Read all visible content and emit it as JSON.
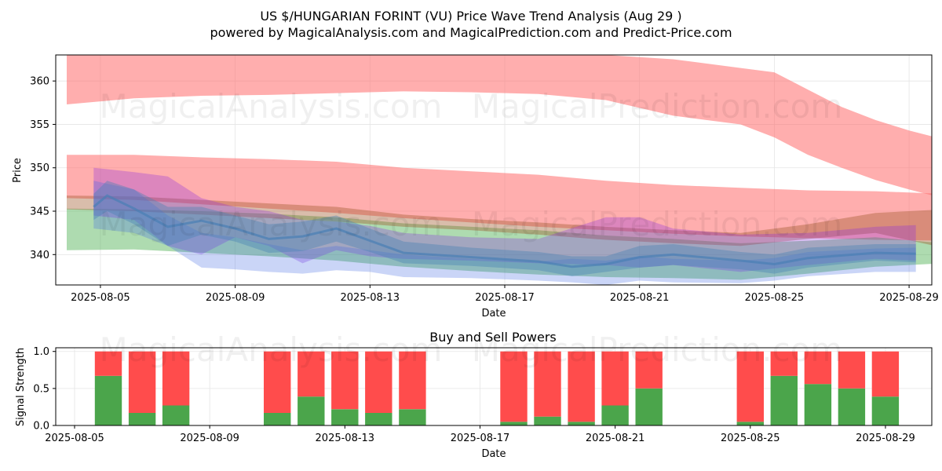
{
  "title": "US $/HUNGARIAN FORINT (VU) Price Wave Trend Analysis (Aug 29 )",
  "subtitle": "powered by MagicalAnalysis.com and MagicalPrediction.com and Predict-Price.com",
  "watermarks": [
    "MagicalAnalysis.com",
    "MagicalPrediction.com"
  ],
  "chart_data": [
    {
      "type": "area",
      "title": "",
      "xlabel": "Date",
      "ylabel": "Price",
      "x_start": "2025-08-04",
      "x_tick_labels": [
        "2025-08-05",
        "2025-08-09",
        "2025-08-13",
        "2025-08-17",
        "2025-08-21",
        "2025-08-25",
        "2025-08-29"
      ],
      "xlim": [
        "2025-08-04",
        "2025-08-30"
      ],
      "ylim": [
        336.5,
        363
      ],
      "y_ticks": [
        340,
        345,
        350,
        355,
        360
      ],
      "grid": true,
      "bands": [
        {
          "color": "#ff6b6b",
          "opacity": 0.55,
          "x": [
            "2025-08-04",
            "2025-08-06",
            "2025-08-08",
            "2025-08-10",
            "2025-08-12",
            "2025-08-14",
            "2025-08-16",
            "2025-08-18",
            "2025-08-20",
            "2025-08-22",
            "2025-08-24",
            "2025-08-25",
            "2025-08-26",
            "2025-08-27",
            "2025-08-28",
            "2025-08-29",
            "2025-08-30"
          ],
          "upper": [
            363,
            363,
            363,
            363,
            363,
            363,
            363,
            363,
            363,
            362.5,
            361.5,
            361,
            359,
            357,
            355.5,
            354.3,
            353.3
          ],
          "lower": [
            357.3,
            358,
            358.3,
            358.4,
            358.6,
            358.8,
            358.7,
            358.5,
            357.8,
            356,
            355,
            353.5,
            351.5,
            350,
            348.6,
            347.5,
            346.5
          ]
        },
        {
          "color": "#ff6b6b",
          "opacity": 0.55,
          "x": [
            "2025-08-04",
            "2025-08-06",
            "2025-08-08",
            "2025-08-10",
            "2025-08-12",
            "2025-08-14",
            "2025-08-16",
            "2025-08-18",
            "2025-08-20",
            "2025-08-22",
            "2025-08-24",
            "2025-08-26",
            "2025-08-28",
            "2025-08-30"
          ],
          "upper": [
            351.5,
            351.5,
            351.2,
            351,
            350.7,
            350,
            349.6,
            349.2,
            348.5,
            348,
            347.7,
            347.4,
            347.3,
            347
          ],
          "lower": [
            346.5,
            346.3,
            345.8,
            345.3,
            344.8,
            344.2,
            343.7,
            343.2,
            342.8,
            342.4,
            342.1,
            341.9,
            341.7,
            341.6
          ]
        },
        {
          "color": "#4caf50",
          "opacity": 0.45,
          "x": [
            "2025-08-04",
            "2025-08-06",
            "2025-08-08",
            "2025-08-10",
            "2025-08-12",
            "2025-08-14",
            "2025-08-16",
            "2025-08-18",
            "2025-08-20",
            "2025-08-22",
            "2025-08-24",
            "2025-08-26",
            "2025-08-28",
            "2025-08-30"
          ],
          "upper": [
            345.3,
            345.2,
            345,
            344.7,
            344.3,
            343.6,
            343.2,
            342.8,
            342.2,
            341.8,
            341.3,
            341.6,
            342,
            341.3
          ],
          "lower": [
            340.5,
            340.6,
            340.2,
            339.8,
            339.3,
            338.6,
            338.1,
            337.7,
            337.4,
            337.3,
            337.1,
            337.8,
            338.6,
            339
          ]
        },
        {
          "color": "#a05a2c",
          "opacity": 0.4,
          "x": [
            "2025-08-04",
            "2025-08-06",
            "2025-08-08",
            "2025-08-10",
            "2025-08-12",
            "2025-08-14",
            "2025-08-16",
            "2025-08-18",
            "2025-08-20",
            "2025-08-22",
            "2025-08-24",
            "2025-08-26",
            "2025-08-28",
            "2025-08-30"
          ],
          "upper": [
            346.8,
            346.7,
            346.3,
            345.9,
            345.5,
            344.6,
            344.1,
            343.7,
            343.2,
            342.8,
            342.5,
            343.5,
            344.8,
            345.2
          ],
          "lower": [
            345.2,
            345,
            344.6,
            344.2,
            343.8,
            343.2,
            342.8,
            342.3,
            341.7,
            341.3,
            341,
            341.8,
            342.5,
            340.8
          ]
        },
        {
          "color": "#8a2be2",
          "opacity": 0.3,
          "x": [
            "2025-08-04.8",
            "2025-08-06",
            "2025-08-07",
            "2025-08-08",
            "2025-08-09",
            "2025-08-10",
            "2025-08-11",
            "2025-08-12",
            "2025-08-13",
            "2025-08-14",
            "2025-08-16",
            "2025-08-18",
            "2025-08-20",
            "2025-08-21",
            "2025-08-22",
            "2025-08-24",
            "2025-08-26",
            "2025-08-28",
            "2025-08-29.2"
          ],
          "upper": [
            350,
            349.5,
            349,
            346.5,
            345.5,
            345,
            344,
            343.8,
            343.3,
            342.5,
            342,
            341.8,
            344.3,
            344.3,
            343,
            342.3,
            342.5,
            343.2,
            343.4
          ],
          "lower": [
            344.5,
            344,
            341,
            340,
            342,
            341,
            339,
            340.5,
            339.8,
            339.5,
            339.3,
            339,
            338.8,
            338.5,
            338.8,
            338,
            338.8,
            339.5,
            339.3
          ]
        },
        {
          "color": "#4169e1",
          "opacity": 0.28,
          "x": [
            "2025-08-04.8",
            "2025-08-06",
            "2025-08-07",
            "2025-08-08",
            "2025-08-09",
            "2025-08-10",
            "2025-08-11",
            "2025-08-12",
            "2025-08-13",
            "2025-08-14",
            "2025-08-16",
            "2025-08-18",
            "2025-08-19",
            "2025-08-20",
            "2025-08-21",
            "2025-08-22",
            "2025-08-24",
            "2025-08-25",
            "2025-08-26",
            "2025-08-28",
            "2025-08-29.2"
          ],
          "upper": [
            348.5,
            347.5,
            344.5,
            342.5,
            342,
            341.2,
            340.5,
            341,
            340.5,
            340,
            339.5,
            339.2,
            339.5,
            339.3,
            339.8,
            339.5,
            339.3,
            339.6,
            340.3,
            340.7,
            340.8
          ],
          "lower": [
            343,
            342.5,
            341,
            338.5,
            338.3,
            338,
            337.8,
            338.2,
            338,
            337.4,
            337.3,
            337,
            336.8,
            336.5,
            337,
            336.8,
            336.7,
            337,
            337.5,
            338,
            338
          ]
        },
        {
          "color": "#4682b4",
          "opacity": 0.4,
          "x": [
            "2025-08-04.8",
            "2025-08-05.2",
            "2025-08-06",
            "2025-08-07",
            "2025-08-08",
            "2025-08-09",
            "2025-08-10",
            "2025-08-11",
            "2025-08-12",
            "2025-08-13",
            "2025-08-14",
            "2025-08-16",
            "2025-08-18",
            "2025-08-19",
            "2025-08-20",
            "2025-08-21",
            "2025-08-22",
            "2025-08-24",
            "2025-08-25",
            "2025-08-26",
            "2025-08-28",
            "2025-08-29.2"
          ],
          "upper": [
            347,
            348.5,
            347.5,
            345.5,
            345.5,
            344.5,
            343.5,
            343.8,
            344.5,
            343,
            341.5,
            340.8,
            340.3,
            339.8,
            339.8,
            341,
            341.2,
            340.3,
            340,
            340.8,
            341.2,
            341.2
          ],
          "lower": [
            344,
            345,
            343.5,
            341,
            342.3,
            341.5,
            340.2,
            340.4,
            341.5,
            340.3,
            339,
            338.7,
            338.2,
            337.5,
            338,
            338.5,
            338.8,
            338.3,
            337.8,
            338.5,
            339.3,
            339.1
          ]
        }
      ],
      "lines": [
        {
          "color": "#4a7fb5",
          "opacity": 0.7,
          "x": [
            "2025-08-04.8",
            "2025-08-05.2",
            "2025-08-06",
            "2025-08-07",
            "2025-08-08",
            "2025-08-09",
            "2025-08-10",
            "2025-08-11",
            "2025-08-12",
            "2025-08-13",
            "2025-08-14",
            "2025-08-16",
            "2025-08-18",
            "2025-08-19",
            "2025-08-20",
            "2025-08-21",
            "2025-08-22",
            "2025-08-24",
            "2025-08-25",
            "2025-08-26",
            "2025-08-28",
            "2025-08-29.2"
          ],
          "y": [
            345.5,
            346.8,
            345.3,
            343.2,
            343.9,
            343,
            341.8,
            342.1,
            343,
            341.6,
            340.2,
            339.7,
            339.2,
            338.6,
            338.9,
            339.7,
            340,
            339.3,
            338.9,
            339.6,
            340.2,
            340.1
          ]
        }
      ]
    },
    {
      "type": "bar",
      "title": "Buy and Sell Powers",
      "xlabel": "Date",
      "ylabel": "Signal Strength",
      "x_tick_labels": [
        "2025-08-05",
        "2025-08-09",
        "2025-08-13",
        "2025-08-17",
        "2025-08-21",
        "2025-08-25",
        "2025-08-29"
      ],
      "xlim": [
        "2025-08-05",
        "2025-08-30"
      ],
      "ylim": [
        0,
        1.05
      ],
      "y_tick_labels": [
        "0.0",
        "0.5",
        "1.0"
      ],
      "colors": {
        "buy": "#4ba54b",
        "sell": "#ff4c4c"
      },
      "dates": [
        "2025-08-06",
        "2025-08-07",
        "2025-08-08",
        "2025-08-11",
        "2025-08-12",
        "2025-08-13",
        "2025-08-14",
        "2025-08-15",
        "2025-08-18",
        "2025-08-19",
        "2025-08-20",
        "2025-08-21",
        "2025-08-22",
        "2025-08-25",
        "2025-08-26",
        "2025-08-27",
        "2025-08-28",
        "2025-08-29"
      ],
      "buy": [
        0.67,
        0.17,
        0.27,
        0.17,
        0.39,
        0.22,
        0.17,
        0.22,
        0.05,
        0.12,
        0.05,
        0.27,
        0.5,
        0.05,
        0.67,
        0.56,
        0.5,
        0.39
      ],
      "sell": [
        0.33,
        0.83,
        0.73,
        0.83,
        0.61,
        0.78,
        0.83,
        0.78,
        0.95,
        0.88,
        0.95,
        0.73,
        0.5,
        0.95,
        0.33,
        0.44,
        0.5,
        0.61
      ]
    }
  ]
}
